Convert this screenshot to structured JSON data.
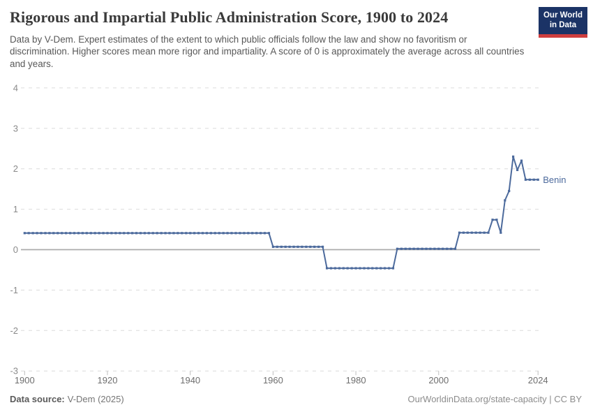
{
  "header": {
    "title": "Rigorous and Impartial Public Administration Score, 1900 to 2024",
    "subtitle": "Data by V-Dem. Expert estimates of the extent to which public officials follow the law and show no favoritism or discrimination. Higher scores mean more rigor and impartiality. A score of 0 is approximately the average across all countries and years.",
    "logo": {
      "line1": "Our World",
      "line2": "in Data",
      "bg": "#1b3366",
      "accent": "#cf3e3e"
    }
  },
  "footer": {
    "source_label": "Data source:",
    "source_value": "V-Dem (2025)",
    "credit": "OurWorldinData.org/state-capacity | CC BY"
  },
  "chart_data": {
    "type": "line",
    "title": "Rigorous and Impartial Public Administration Score, 1900 to 2024",
    "entity": "Benin",
    "xlabel": "",
    "ylabel": "",
    "xlim": [
      1900,
      2024
    ],
    "ylim": [
      -3,
      4
    ],
    "x_ticks": [
      1900,
      1920,
      1940,
      1960,
      1980,
      2000,
      2024
    ],
    "y_ticks": [
      4,
      3,
      2,
      1,
      0,
      -1,
      -2,
      -3
    ],
    "grid": "dashed horizontal gridlines, solid zero line",
    "legend": "entity label at end of line",
    "line_color": "#4c6a9c",
    "grid_color": "#dcdcdc",
    "zero_line_color": "#ababab",
    "y_tick_color": "#8a8a8a",
    "x_tick_color": "#6e6e6e",
    "marker": "square",
    "series": [
      {
        "name": "Benin",
        "start_year": 1900,
        "values": [
          0.41,
          0.41,
          0.41,
          0.41,
          0.41,
          0.41,
          0.41,
          0.41,
          0.41,
          0.41,
          0.41,
          0.41,
          0.41,
          0.41,
          0.41,
          0.41,
          0.41,
          0.41,
          0.41,
          0.41,
          0.41,
          0.41,
          0.41,
          0.41,
          0.41,
          0.41,
          0.41,
          0.41,
          0.41,
          0.41,
          0.41,
          0.41,
          0.41,
          0.41,
          0.41,
          0.41,
          0.41,
          0.41,
          0.41,
          0.41,
          0.41,
          0.41,
          0.41,
          0.41,
          0.41,
          0.41,
          0.41,
          0.41,
          0.41,
          0.41,
          0.41,
          0.41,
          0.41,
          0.41,
          0.41,
          0.41,
          0.41,
          0.41,
          0.41,
          0.41,
          0.07,
          0.07,
          0.07,
          0.07,
          0.07,
          0.07,
          0.07,
          0.07,
          0.07,
          0.07,
          0.07,
          0.07,
          0.07,
          -0.46,
          -0.46,
          -0.46,
          -0.46,
          -0.46,
          -0.46,
          -0.46,
          -0.46,
          -0.46,
          -0.46,
          -0.46,
          -0.46,
          -0.46,
          -0.46,
          -0.46,
          -0.46,
          -0.46,
          0.02,
          0.02,
          0.02,
          0.02,
          0.02,
          0.02,
          0.02,
          0.02,
          0.02,
          0.02,
          0.02,
          0.02,
          0.02,
          0.02,
          0.02,
          0.42,
          0.42,
          0.42,
          0.42,
          0.42,
          0.42,
          0.42,
          0.42,
          0.74,
          0.74,
          0.42,
          1.22,
          1.45,
          2.3,
          1.97,
          2.2,
          1.73,
          1.73,
          1.73,
          1.73
        ]
      }
    ]
  }
}
